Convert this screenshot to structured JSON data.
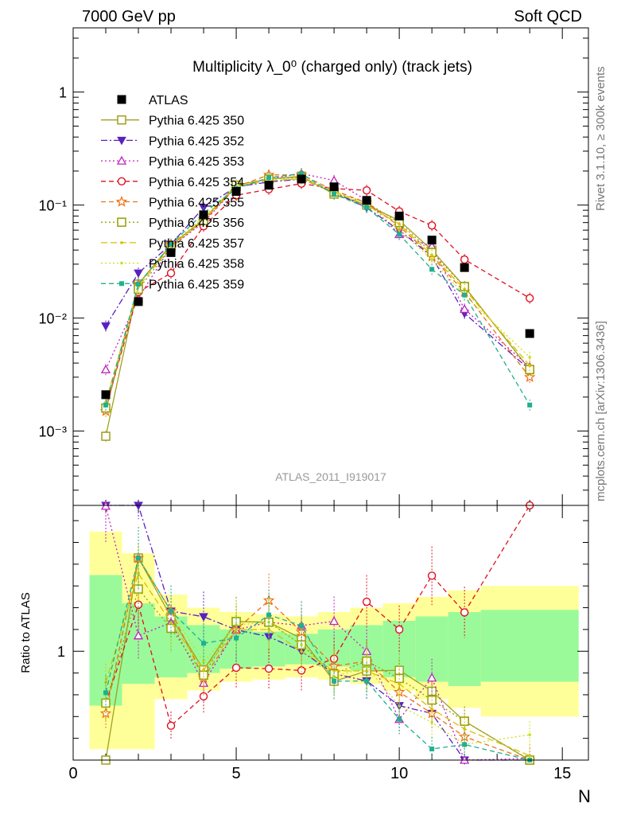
{
  "header": {
    "left": "7000 GeV pp",
    "right": "Soft QCD"
  },
  "side_labels": {
    "top": "Rivet 3.1.10, ≥ 300k events",
    "bottom": "mcplots.cern.ch [arXiv:1306.3436]"
  },
  "chart_data": {
    "type": "line",
    "title": "Multiplicity λ_0⁰ (charged only) (track jets)",
    "analysis_label": "ATLAS_2011_I919017",
    "xlabel": "N",
    "ylabel_ratio": "Ratio to ATLAS",
    "xlim": [
      0,
      15.8
    ],
    "ylim_main": [
      0.00022,
      3.7
    ],
    "ylim_ratio": [
      0.5,
      1.67
    ],
    "y_scale": "log",
    "x_ticks": [
      0,
      5,
      10,
      15
    ],
    "y_ticks_main": [
      {
        "value": 0.001,
        "label": "10⁻³"
      },
      {
        "value": 0.01,
        "label": "10⁻²"
      },
      {
        "value": 0.1,
        "label": "10⁻¹"
      },
      {
        "value": 1,
        "label": "1"
      }
    ],
    "y_ticks_ratio": [
      {
        "value": 1,
        "label": "1"
      }
    ],
    "legend_position": "top-left",
    "x": [
      1,
      2,
      3,
      4,
      5,
      6,
      7,
      8,
      9,
      10,
      11,
      12,
      14
    ],
    "reference": {
      "name": "ATLAS",
      "color": "#000000",
      "values": [
        0.0021,
        0.014,
        0.038,
        0.082,
        0.132,
        0.15,
        0.17,
        0.145,
        0.11,
        0.08,
        0.049,
        0.028,
        0.0073
      ]
    },
    "ratio_band": {
      "x_edges": [
        0.5,
        1.5,
        2.5,
        3.5,
        4.5,
        5.5,
        6.5,
        7.5,
        8.5,
        9.5,
        10.5,
        11.5,
        12.5,
        15.5
      ],
      "inner": [
        [
          0.75,
          1.35
        ],
        [
          0.85,
          1.22
        ],
        [
          0.88,
          1.16
        ],
        [
          0.9,
          1.12
        ],
        [
          0.92,
          1.1
        ],
        [
          0.93,
          1.09
        ],
        [
          0.94,
          1.08
        ],
        [
          0.93,
          1.1
        ],
        [
          0.91,
          1.12
        ],
        [
          0.88,
          1.14
        ],
        [
          0.86,
          1.16
        ],
        [
          0.84,
          1.18
        ],
        [
          0.86,
          1.19
        ]
      ],
      "outer": [
        [
          0.55,
          1.55
        ],
        [
          0.55,
          1.45
        ],
        [
          0.78,
          1.26
        ],
        [
          0.82,
          1.2
        ],
        [
          0.86,
          1.18
        ],
        [
          0.87,
          1.17
        ],
        [
          0.88,
          1.16
        ],
        [
          0.87,
          1.18
        ],
        [
          0.85,
          1.2
        ],
        [
          0.82,
          1.22
        ],
        [
          0.78,
          1.25
        ],
        [
          0.74,
          1.28
        ],
        [
          0.7,
          1.3
        ]
      ],
      "inner_color": "#9afa9a",
      "outer_color": "#ffff99"
    },
    "series": [
      {
        "name": "Pythia 6.425 350",
        "color": "#a0a020",
        "dash": "",
        "marker": "open-square",
        "values": [
          0.0009,
          0.02,
          0.044,
          0.075,
          0.15,
          0.17,
          0.18,
          0.125,
          0.1,
          0.073,
          0.04,
          0.019,
          0.0035
        ]
      },
      {
        "name": "Pythia 6.425 352",
        "color": "#5a20c0",
        "dash": "8,3,2,3",
        "marker": "filled-triangle-down",
        "values": [
          0.0085,
          0.025,
          0.045,
          0.095,
          0.145,
          0.16,
          0.17,
          0.13,
          0.095,
          0.06,
          0.035,
          0.011,
          0.0035
        ]
      },
      {
        "name": "Pythia 6.425 353",
        "color": "#c020c0",
        "dash": "2,3",
        "marker": "open-triangle",
        "values": [
          0.0035,
          0.015,
          0.043,
          0.07,
          0.145,
          0.17,
          0.19,
          0.165,
          0.11,
          0.055,
          0.043,
          0.012,
          0.0037
        ]
      },
      {
        "name": "Pythia 6.425 354",
        "color": "#e01020",
        "dash": "6,4",
        "marker": "open-circle",
        "values": [
          0.0016,
          0.017,
          0.025,
          0.065,
          0.122,
          0.138,
          0.155,
          0.14,
          0.135,
          0.088,
          0.066,
          0.033,
          0.015
        ]
      },
      {
        "name": "Pythia 6.425 355",
        "color": "#f07010",
        "dash": "6,4",
        "marker": "open-star",
        "values": [
          0.0015,
          0.02,
          0.045,
          0.072,
          0.145,
          0.185,
          0.185,
          0.135,
          0.105,
          0.065,
          0.035,
          0.017,
          0.003
        ]
      },
      {
        "name": "Pythia 6.425 356",
        "color": "#98a000",
        "dash": "2,3",
        "marker": "open-square",
        "values": [
          0.0016,
          0.018,
          0.042,
          0.073,
          0.15,
          0.17,
          0.175,
          0.13,
          0.105,
          0.07,
          0.038,
          0.019,
          0.0035
        ]
      },
      {
        "name": "Pythia 6.425 357",
        "color": "#d8c000",
        "dash": "8,4",
        "marker": "small-dot",
        "values": [
          0.0018,
          0.019,
          0.043,
          0.075,
          0.145,
          0.165,
          0.17,
          0.132,
          0.1,
          0.068,
          0.036,
          0.018,
          0.0038
        ]
      },
      {
        "name": "Pythia 6.425 358",
        "color": "#c8e020",
        "dash": "2,3",
        "marker": "small-dot",
        "values": [
          0.0017,
          0.02,
          0.045,
          0.078,
          0.148,
          0.17,
          0.175,
          0.128,
          0.102,
          0.06,
          0.033,
          0.016,
          0.0045
        ]
      },
      {
        "name": "Pythia 6.425 359",
        "color": "#20b090",
        "dash": "6,4",
        "marker": "filled-square-small",
        "values": [
          0.0017,
          0.02,
          0.045,
          0.085,
          0.14,
          0.175,
          0.19,
          0.125,
          0.095,
          0.055,
          0.027,
          0.016,
          0.0017
        ]
      }
    ]
  }
}
